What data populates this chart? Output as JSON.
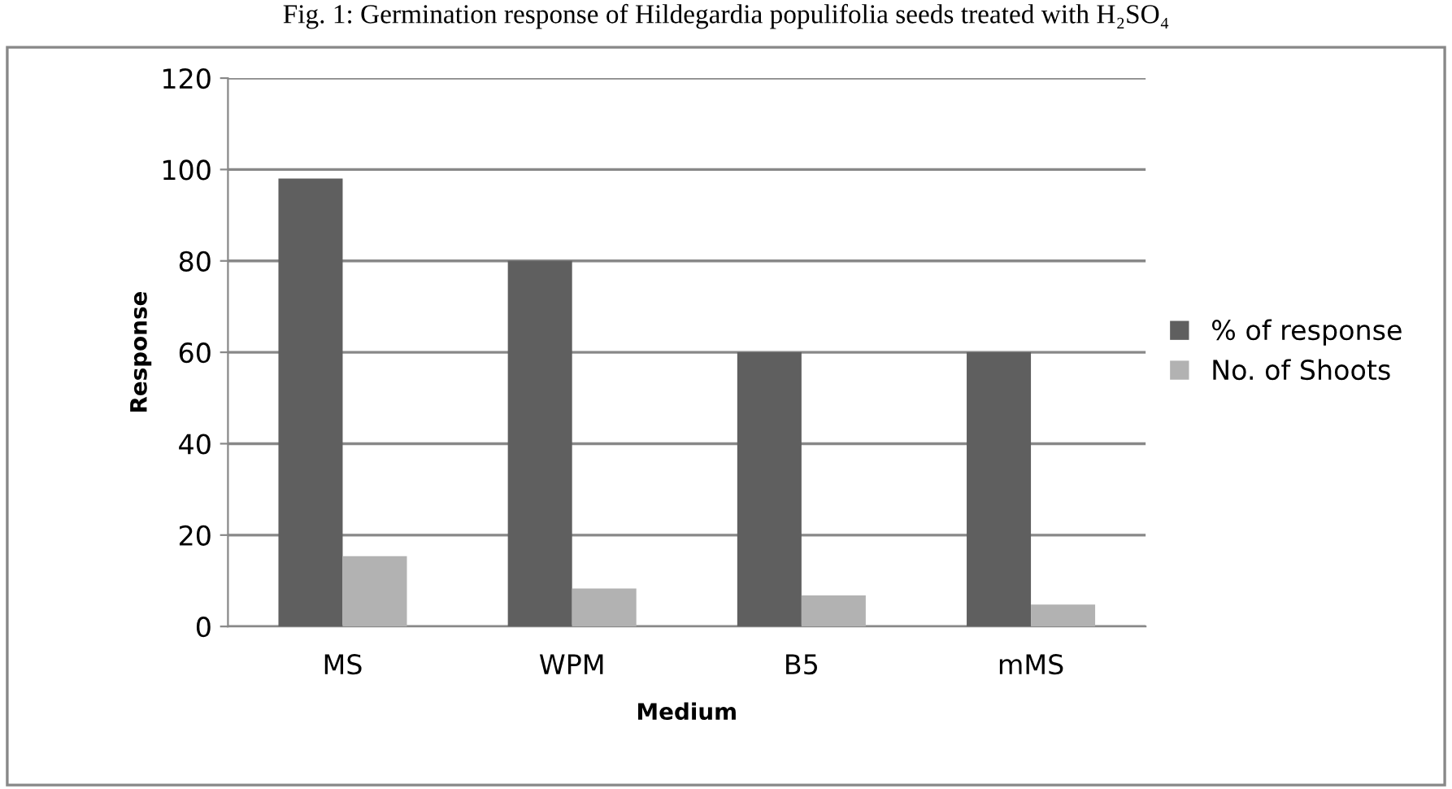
{
  "chart_data": {
    "type": "bar",
    "title": "Fig. 1: Germination response of Hildegardia populifolia seeds treated with H₂SO₄",
    "categories": [
      "MS",
      "WPM",
      "B5",
      "mMS"
    ],
    "series": [
      {
        "name": "% of response",
        "color": "#5f5f5f",
        "values": [
          98,
          80,
          60,
          60
        ]
      },
      {
        "name": "No. of Shoots",
        "color": "#b2b2b2",
        "values": [
          15.4,
          8.3,
          6.8,
          4.8
        ]
      }
    ],
    "xlabel": "Medium",
    "ylabel": "Response",
    "ylim": [
      0,
      120
    ],
    "yticks": [
      0,
      20,
      40,
      60,
      80,
      100,
      120
    ],
    "grid": "y",
    "legend": "right"
  }
}
